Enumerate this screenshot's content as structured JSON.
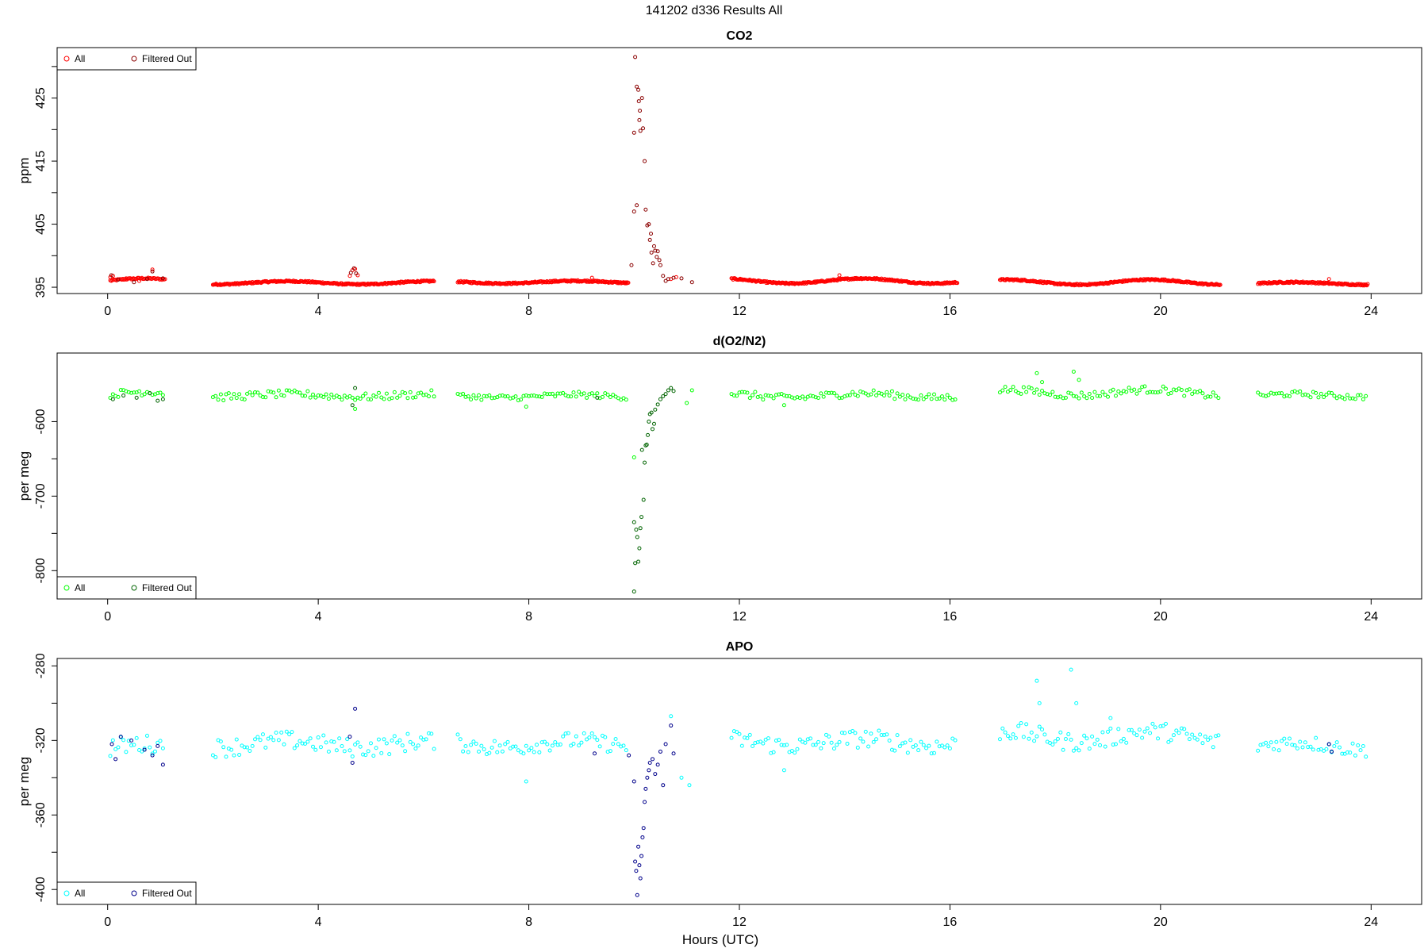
{
  "figure": {
    "title": "141202   d336   Results All",
    "xlabel": "Hours (UTC)"
  },
  "chart_data": [
    {
      "type": "scatter",
      "title": "CO2",
      "ylabel": "ppm",
      "xlim": [
        -0.96,
        24.96
      ],
      "ylim": [
        394,
        433
      ],
      "xticks": [
        0,
        4,
        8,
        12,
        16,
        20,
        24
      ],
      "yticks": [
        395,
        405,
        415,
        425
      ],
      "ytick_minor": [
        400,
        410,
        420,
        430
      ],
      "legend": {
        "position": "top-left",
        "entries": [
          {
            "label": "All",
            "color": "#ff0000"
          },
          {
            "label": "Filtered Out",
            "color": "#8b0000"
          }
        ]
      },
      "all_color": "#ff0000",
      "filtered_color": "#8b0000",
      "segments": [
        {
          "x": [
            0.05,
            1.1
          ],
          "base": 396.0,
          "amp": 0.4,
          "step": 0.02
        },
        {
          "x": [
            2.0,
            6.2
          ],
          "base": 395.7,
          "amp": 0.25,
          "step": 0.015
        },
        {
          "x": [
            6.65,
            9.9
          ],
          "base": 395.8,
          "amp": 0.2,
          "step": 0.015
        },
        {
          "x": [
            11.85,
            16.15
          ],
          "base": 396.0,
          "amp": 0.4,
          "step": 0.015
        },
        {
          "x": [
            16.95,
            21.15
          ],
          "base": 395.8,
          "amp": 0.4,
          "step": 0.015
        },
        {
          "x": [
            21.85,
            23.95
          ],
          "base": 395.6,
          "amp": 0.2,
          "step": 0.015
        }
      ],
      "all_points": [
        [
          0.05,
          396.6
        ],
        [
          0.1,
          396.8
        ],
        [
          0.35,
          396.4
        ],
        [
          0.6,
          396.0
        ],
        [
          0.85,
          397.8
        ],
        [
          4.6,
          396.8
        ],
        [
          4.65,
          397.7
        ],
        [
          4.7,
          397.9
        ],
        [
          4.75,
          396.9
        ],
        [
          9.2,
          396.5
        ],
        [
          10.7,
          396.3
        ],
        [
          10.8,
          396.6
        ],
        [
          13.9,
          396.9
        ],
        [
          23.2,
          396.3
        ]
      ],
      "filtered_points": [
        [
          0.07,
          396.9
        ],
        [
          0.2,
          396.2
        ],
        [
          0.5,
          395.8
        ],
        [
          0.75,
          396.3
        ],
        [
          0.85,
          397.5
        ],
        [
          1.05,
          396.4
        ],
        [
          4.62,
          397.3
        ],
        [
          4.68,
          398.0
        ],
        [
          4.72,
          397.2
        ],
        [
          9.95,
          398.5
        ],
        [
          10.0,
          419.5
        ],
        [
          10.02,
          431.5
        ],
        [
          10.05,
          426.8
        ],
        [
          10.08,
          426.3
        ],
        [
          10.09,
          424.5
        ],
        [
          10.11,
          423.0
        ],
        [
          10.1,
          421.5
        ],
        [
          10.12,
          419.8
        ],
        [
          10.15,
          425.0
        ],
        [
          10.17,
          420.2
        ],
        [
          10.2,
          415.0
        ],
        [
          10.0,
          407.0
        ],
        [
          10.05,
          408.0
        ],
        [
          10.22,
          407.3
        ],
        [
          10.25,
          404.8
        ],
        [
          10.28,
          405.0
        ],
        [
          10.3,
          402.5
        ],
        [
          10.32,
          403.5
        ],
        [
          10.33,
          400.5
        ],
        [
          10.36,
          398.8
        ],
        [
          10.38,
          401.5
        ],
        [
          10.4,
          400.8
        ],
        [
          10.43,
          399.8
        ],
        [
          10.45,
          400.7
        ],
        [
          10.48,
          399.3
        ],
        [
          10.5,
          398.5
        ],
        [
          10.55,
          396.8
        ],
        [
          10.6,
          396.0
        ],
        [
          10.65,
          396.3
        ],
        [
          10.75,
          396.5
        ],
        [
          10.9,
          396.4
        ],
        [
          11.1,
          395.8
        ]
      ]
    },
    {
      "type": "scatter",
      "title": "d(O2/N2)",
      "ylabel": "per meg",
      "xlim": [
        -0.96,
        24.96
      ],
      "ylim": [
        -838,
        -508
      ],
      "xticks": [
        0,
        4,
        8,
        12,
        16,
        20,
        24
      ],
      "yticks": [
        -600,
        -700,
        -800
      ],
      "ytick_minor": [
        -650,
        -750
      ],
      "legend": {
        "position": "bottom-left",
        "entries": [
          {
            "label": "All",
            "color": "#00ff00"
          },
          {
            "label": "Filtered Out",
            "color": "#006400"
          }
        ]
      },
      "all_color": "#00ff00",
      "filtered_color": "#006400",
      "segments": [
        {
          "x": [
            0.05,
            1.1
          ],
          "base": -564,
          "amp": 4,
          "noise": 5,
          "step": 0.05
        },
        {
          "x": [
            2.0,
            6.2
          ],
          "base": -565,
          "amp": 2,
          "noise": 5,
          "step": 0.05
        },
        {
          "x": [
            6.65,
            9.9
          ],
          "base": -566,
          "amp": 2,
          "noise": 4,
          "step": 0.05
        },
        {
          "x": [
            11.85,
            16.15
          ],
          "base": -565,
          "amp": 3,
          "noise": 5,
          "step": 0.05
        },
        {
          "x": [
            16.95,
            21.15
          ],
          "base": -561,
          "amp": 4,
          "noise": 5,
          "step": 0.05
        },
        {
          "x": [
            21.85,
            23.95
          ],
          "base": -565,
          "amp": 2,
          "noise": 4,
          "step": 0.05
        }
      ],
      "all_points": [
        [
          4.7,
          -583
        ],
        [
          7.95,
          -580
        ],
        [
          10.0,
          -648
        ],
        [
          11.0,
          -575
        ],
        [
          11.1,
          -558
        ],
        [
          17.65,
          -535
        ],
        [
          17.75,
          -547
        ],
        [
          18.35,
          -533
        ],
        [
          18.45,
          -544
        ],
        [
          12.85,
          -578
        ]
      ],
      "filtered_points": [
        [
          0.1,
          -570
        ],
        [
          0.3,
          -565
        ],
        [
          0.55,
          -568
        ],
        [
          0.8,
          -562
        ],
        [
          0.95,
          -572
        ],
        [
          1.05,
          -570
        ],
        [
          4.65,
          -578
        ],
        [
          4.7,
          -555
        ],
        [
          9.3,
          -568
        ],
        [
          10.0,
          -735
        ],
        [
          10.02,
          -790
        ],
        [
          10.04,
          -745
        ],
        [
          10.06,
          -755
        ],
        [
          10.08,
          -788
        ],
        [
          10.1,
          -770
        ],
        [
          10.12,
          -743
        ],
        [
          10.14,
          -728
        ],
        [
          10.15,
          -638
        ],
        [
          10.18,
          -705
        ],
        [
          10.2,
          -655
        ],
        [
          10.22,
          -632
        ],
        [
          10.24,
          -631
        ],
        [
          10.26,
          -618
        ],
        [
          10.28,
          -600
        ],
        [
          10.3,
          -590
        ],
        [
          10.33,
          -588
        ],
        [
          10.35,
          -610
        ],
        [
          10.38,
          -603
        ],
        [
          10.4,
          -584
        ],
        [
          10.45,
          -577
        ],
        [
          10.5,
          -570
        ],
        [
          10.55,
          -566
        ],
        [
          10.6,
          -563
        ],
        [
          10.65,
          -558
        ],
        [
          10.7,
          -555
        ],
        [
          10.75,
          -559
        ],
        [
          10.0,
          -828
        ]
      ]
    },
    {
      "type": "scatter",
      "title": "APO",
      "ylabel": "per meg",
      "xlim": [
        -0.96,
        24.96
      ],
      "ylim": [
        -408,
        -276
      ],
      "xticks": [
        0,
        4,
        8,
        12,
        16,
        20,
        24
      ],
      "yticks": [
        -280,
        -320,
        -360,
        -400
      ],
      "ytick_minor": [
        -300,
        -340,
        -380
      ],
      "legend": {
        "position": "bottom-left",
        "entries": [
          {
            "label": "All",
            "color": "#00ffff"
          },
          {
            "label": "Filtered Out",
            "color": "#00008b"
          }
        ]
      },
      "all_color": "#00ffff",
      "filtered_color": "#00008b",
      "segments": [
        {
          "x": [
            0.05,
            1.1
          ],
          "base": -324,
          "amp": 2,
          "noise": 5,
          "step": 0.05
        },
        {
          "x": [
            2.0,
            6.2
          ],
          "base": -322,
          "amp": 2,
          "noise": 5,
          "step": 0.05
        },
        {
          "x": [
            6.65,
            9.9
          ],
          "base": -322,
          "amp": 2,
          "noise": 4.5,
          "step": 0.05
        },
        {
          "x": [
            11.85,
            16.15
          ],
          "base": -321,
          "amp": 2,
          "noise": 5,
          "step": 0.05
        },
        {
          "x": [
            16.95,
            21.15
          ],
          "base": -318,
          "amp": 3,
          "noise": 5,
          "step": 0.05
        },
        {
          "x": [
            21.85,
            23.95
          ],
          "base": -323,
          "amp": 2,
          "noise": 4,
          "step": 0.05
        }
      ],
      "all_points": [
        [
          7.95,
          -342
        ],
        [
          10.7,
          -307
        ],
        [
          10.9,
          -340
        ],
        [
          11.05,
          -344
        ],
        [
          12.85,
          -336
        ],
        [
          17.65,
          -288
        ],
        [
          17.7,
          -300
        ],
        [
          18.3,
          -282
        ],
        [
          18.4,
          -300
        ],
        [
          19.05,
          -308
        ]
      ],
      "filtered_points": [
        [
          0.08,
          -322
        ],
        [
          0.15,
          -330
        ],
        [
          0.25,
          -318
        ],
        [
          0.45,
          -320
        ],
        [
          0.7,
          -325
        ],
        [
          0.85,
          -328
        ],
        [
          0.95,
          -323
        ],
        [
          1.05,
          -333
        ],
        [
          4.65,
          -332
        ],
        [
          4.7,
          -303
        ],
        [
          4.6,
          -318
        ],
        [
          9.25,
          -327
        ],
        [
          9.9,
          -328
        ],
        [
          10.0,
          -342
        ],
        [
          10.02,
          -385
        ],
        [
          10.04,
          -390
        ],
        [
          10.06,
          -403
        ],
        [
          10.08,
          -377
        ],
        [
          10.1,
          -387
        ],
        [
          10.12,
          -394
        ],
        [
          10.14,
          -382
        ],
        [
          10.16,
          -372
        ],
        [
          10.18,
          -367
        ],
        [
          10.2,
          -353
        ],
        [
          10.22,
          -346
        ],
        [
          10.25,
          -340
        ],
        [
          10.28,
          -336
        ],
        [
          10.3,
          -332
        ],
        [
          10.35,
          -330
        ],
        [
          10.4,
          -338
        ],
        [
          10.45,
          -333
        ],
        [
          10.5,
          -326
        ],
        [
          10.55,
          -344
        ],
        [
          10.6,
          -322
        ],
        [
          10.7,
          -312
        ],
        [
          10.75,
          -327
        ],
        [
          23.2,
          -322
        ],
        [
          23.25,
          -326
        ]
      ]
    }
  ]
}
